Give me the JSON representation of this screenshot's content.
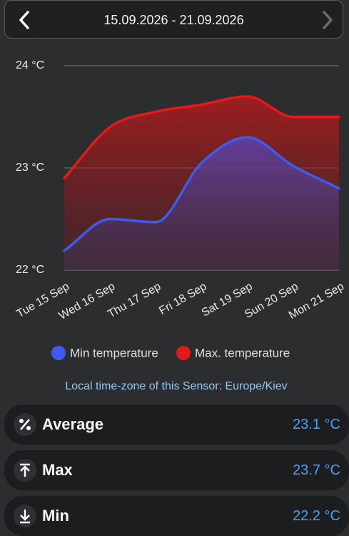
{
  "header": {
    "date_range": "15.09.2026 - 21.09.2026"
  },
  "chart_data": {
    "type": "line",
    "categories": [
      "Tue 15 Sep",
      "Wed 16 Sep",
      "Thu 17 Sep",
      "Fri 18 Sep",
      "Sat 19 Sep",
      "Sun 20 Sep",
      "Mon 21 Sep"
    ],
    "series": [
      {
        "name": "Min temperature",
        "color": "#3c5cf0",
        "values": [
          22.19,
          22.5,
          22.47,
          23.05,
          23.3,
          23.02,
          22.8
        ]
      },
      {
        "name": "Max. temperature",
        "color": "#e31a1a",
        "values": [
          22.9,
          23.4,
          23.55,
          23.62,
          23.7,
          23.5,
          23.5
        ]
      }
    ],
    "ylim": [
      22,
      24
    ],
    "yticks": [
      {
        "value": 22,
        "label": "22 °C"
      },
      {
        "value": 23,
        "label": "23 °C"
      },
      {
        "value": 24,
        "label": "24 °C"
      }
    ],
    "grid": true
  },
  "note": "Local time-zone of this Sensor: Europe/Kiev",
  "stats": [
    {
      "label": "Average",
      "value": "23.1 °C"
    },
    {
      "label": "Max",
      "value": "23.7 °C"
    },
    {
      "label": "Min",
      "value": "22.2 °C"
    }
  ]
}
